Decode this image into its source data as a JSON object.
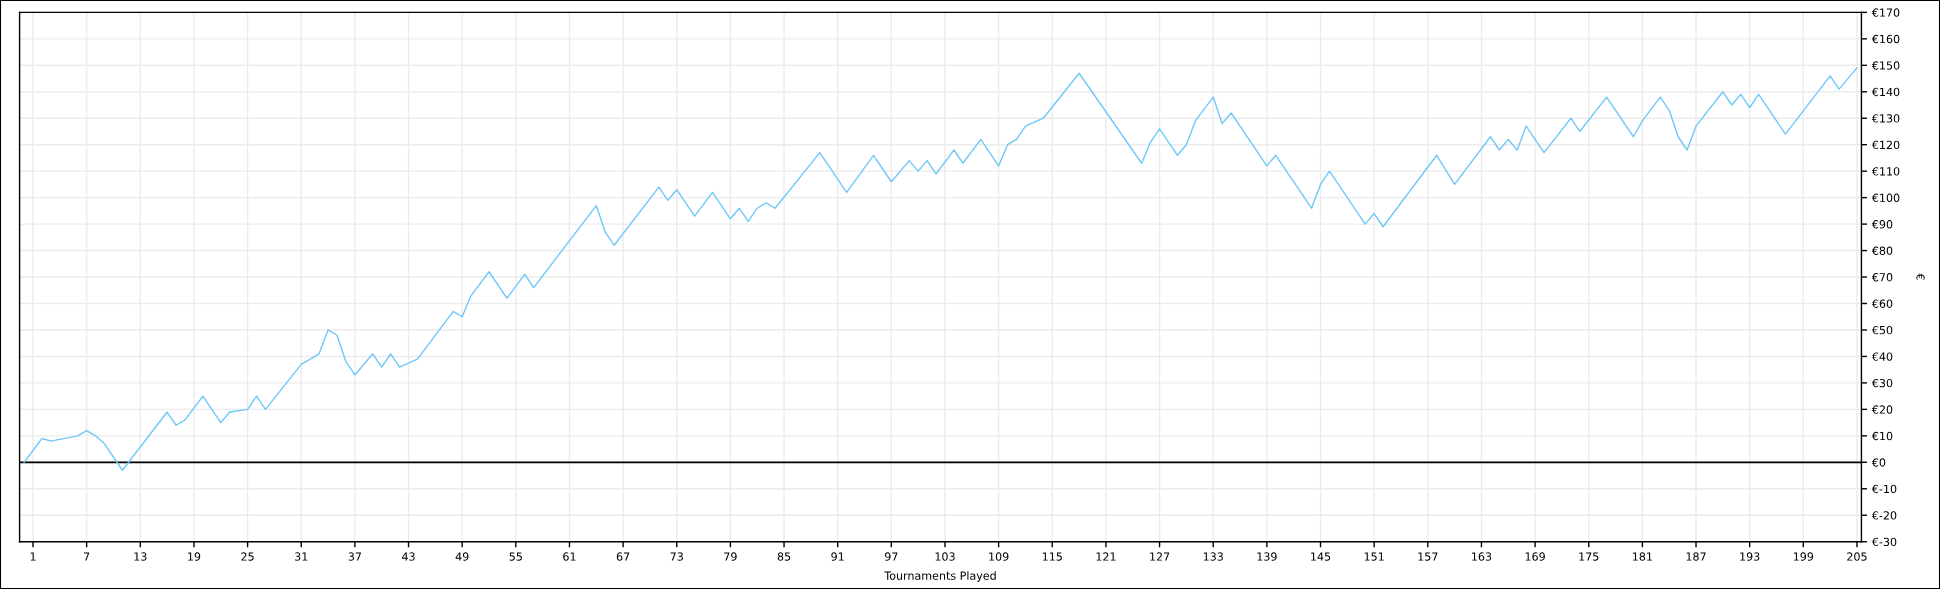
{
  "chart_data": {
    "type": "line",
    "xlabel": "Tournaments Played",
    "ylabel": "€",
    "series": [
      {
        "color": "#6ec8f8",
        "x": [
          0,
          2,
          3,
          6,
          7,
          8,
          9,
          11,
          16,
          17,
          18,
          20,
          22,
          23,
          25,
          26,
          27,
          31,
          33,
          34,
          35,
          36,
          37,
          39,
          40,
          41,
          42,
          44,
          48,
          49,
          50,
          52,
          54,
          56,
          57,
          64,
          65,
          66,
          71,
          72,
          73,
          75,
          77,
          79,
          80,
          81,
          82,
          83,
          84,
          89,
          92,
          95,
          97,
          99,
          100,
          101,
          102,
          104,
          105,
          107,
          109,
          110,
          111,
          112,
          114,
          118,
          125,
          126,
          127,
          129,
          130,
          131,
          133,
          134,
          135,
          139,
          140,
          144,
          145,
          146,
          150,
          151,
          152,
          158,
          160,
          164,
          165,
          166,
          167,
          168,
          170,
          173,
          174,
          177,
          180,
          181,
          183,
          184,
          185,
          186,
          187,
          190,
          191,
          192,
          193,
          194,
          197,
          202,
          203,
          205
        ],
        "values": [
          0,
          9,
          8,
          10,
          12,
          10,
          7,
          -3,
          19,
          14,
          16,
          25,
          15,
          19,
          20,
          25,
          20,
          37,
          41,
          50,
          48,
          38,
          33,
          41,
          36,
          41,
          36,
          39,
          57,
          55,
          63,
          72,
          62,
          71,
          66,
          97,
          87,
          82,
          104,
          99,
          103,
          93,
          102,
          92,
          96,
          91,
          96,
          98,
          96,
          117,
          102,
          116,
          106,
          114,
          110,
          114,
          109,
          118,
          113,
          122,
          112,
          120,
          122,
          127,
          130,
          147,
          113,
          121,
          126,
          116,
          120,
          129,
          138,
          128,
          132,
          112,
          116,
          96,
          105,
          110,
          90,
          94,
          89,
          116,
          105,
          123,
          118,
          122,
          118,
          127,
          117,
          130,
          125,
          138,
          123,
          129,
          138,
          133,
          123,
          118,
          127,
          140,
          135,
          139,
          134,
          139,
          124,
          146,
          141,
          149
        ]
      }
    ],
    "xlim": [
      -0.5,
      205.5
    ],
    "xticks": [
      1,
      7,
      13,
      19,
      25,
      31,
      37,
      43,
      49,
      55,
      61,
      67,
      73,
      79,
      85,
      91,
      97,
      103,
      109,
      115,
      121,
      127,
      133,
      139,
      145,
      151,
      157,
      163,
      169,
      175,
      181,
      187,
      193,
      199,
      205
    ],
    "ylim": [
      -30,
      170
    ],
    "yticks": [
      {
        "value": -30,
        "label": "€-30"
      },
      {
        "value": -20,
        "label": "€-20"
      },
      {
        "value": -10,
        "label": "€-10"
      },
      {
        "value": 0,
        "label": "€0"
      },
      {
        "value": 10,
        "label": "€10"
      },
      {
        "value": 20,
        "label": "€20"
      },
      {
        "value": 30,
        "label": "€30"
      },
      {
        "value": 40,
        "label": "€40"
      },
      {
        "value": 50,
        "label": "€50"
      },
      {
        "value": 60,
        "label": "€60"
      },
      {
        "value": 70,
        "label": "€70"
      },
      {
        "value": 80,
        "label": "€80"
      },
      {
        "value": 90,
        "label": "€90"
      },
      {
        "value": 100,
        "label": "€100"
      },
      {
        "value": 110,
        "label": "€110"
      },
      {
        "value": 120,
        "label": "€120"
      },
      {
        "value": 130,
        "label": "€130"
      },
      {
        "value": 140,
        "label": "€140"
      },
      {
        "value": 150,
        "label": "€150"
      },
      {
        "value": 160,
        "label": "€160"
      },
      {
        "value": 170,
        "label": "€170"
      }
    ],
    "ref_lines": [
      {
        "axis": "y",
        "value": 0,
        "color": "#000000"
      }
    ],
    "grid": true
  }
}
